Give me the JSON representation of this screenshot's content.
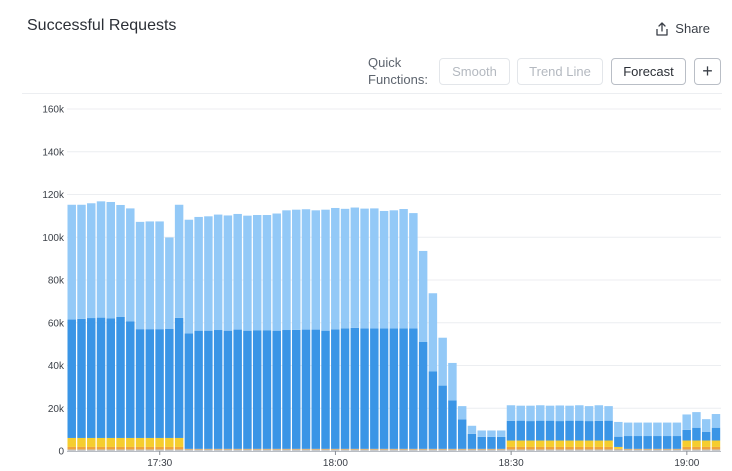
{
  "header": {
    "title": "Successful Requests",
    "share_label": "Share",
    "share_icon": "share-icon"
  },
  "quick_functions": {
    "label_line1": "Quick",
    "label_line2": "Functions:",
    "smooth_label": "Smooth",
    "trend_label": "Trend Line",
    "forecast_label": "Forecast",
    "add_label": "+"
  },
  "colors": {
    "light_blue": "#93c9f7",
    "blue": "#3a95e6",
    "yellow": "#f5cd2e",
    "orange": "#f0a33c",
    "gray": "#c7c9cc",
    "grid": "#eceef1"
  },
  "chart_data": {
    "type": "bar",
    "stacked": true,
    "ylim": [
      0,
      160000
    ],
    "yticks": [
      "0",
      "20k",
      "40k",
      "60k",
      "80k",
      "100k",
      "120k",
      "140k",
      "160k"
    ],
    "xticks": [
      "17:30",
      "18:00",
      "18:30",
      "19:00"
    ],
    "grid": true,
    "series": [
      {
        "color": "#c7c9cc",
        "values": [
          700,
          700,
          700,
          700,
          700,
          700,
          700,
          700,
          700,
          700,
          700,
          700,
          700,
          700,
          700,
          700,
          700,
          700,
          700,
          700,
          700,
          700,
          700,
          700,
          700,
          700,
          700,
          700,
          700,
          700,
          700,
          700,
          700,
          700,
          700,
          700,
          700,
          700,
          700,
          700,
          700,
          700,
          700,
          700,
          700,
          700,
          700,
          700,
          700,
          700,
          700,
          700,
          700,
          700,
          700,
          700,
          700,
          700,
          700,
          700,
          700,
          700,
          700,
          700,
          700,
          700,
          700
        ]
      },
      {
        "color": "#f0a33c",
        "values": [
          1200,
          1200,
          1200,
          1200,
          1200,
          1200,
          1200,
          1200,
          1200,
          1200,
          1200,
          1200,
          300,
          300,
          300,
          300,
          300,
          300,
          300,
          300,
          300,
          300,
          300,
          300,
          300,
          300,
          300,
          300,
          300,
          300,
          300,
          300,
          300,
          300,
          300,
          300,
          300,
          300,
          300,
          300,
          300,
          300,
          300,
          300,
          300,
          1200,
          1200,
          1200,
          1200,
          1200,
          1200,
          1200,
          1200,
          1200,
          1200,
          1200,
          300,
          300,
          300,
          300,
          300,
          300,
          300,
          1200,
          1200,
          1200,
          1200
        ]
      },
      {
        "color": "#f5cd2e",
        "values": [
          4200,
          4200,
          4200,
          4200,
          4200,
          4200,
          4200,
          4200,
          4200,
          4200,
          4200,
          4200,
          0,
          0,
          0,
          0,
          0,
          0,
          0,
          0,
          0,
          0,
          0,
          0,
          0,
          0,
          0,
          0,
          0,
          0,
          0,
          0,
          0,
          0,
          0,
          0,
          0,
          0,
          0,
          0,
          0,
          0,
          0,
          0,
          0,
          3000,
          3000,
          3000,
          3000,
          3000,
          3000,
          3000,
          3000,
          3000,
          3000,
          3000,
          900,
          0,
          0,
          0,
          0,
          0,
          0,
          3000,
          3000,
          3000,
          3000
        ]
      },
      {
        "color": "#3a95e6",
        "values": [
          55400,
          55700,
          56100,
          56300,
          55900,
          56600,
          54600,
          50900,
          50900,
          50900,
          51100,
          56200,
          54000,
          55300,
          55300,
          55600,
          55300,
          55800,
          55300,
          55500,
          55500,
          55300,
          55600,
          55700,
          55800,
          55800,
          55300,
          55900,
          56400,
          56600,
          56300,
          56300,
          56300,
          56300,
          56400,
          56300,
          50000,
          36200,
          29600,
          22700,
          13800,
          7000,
          5600,
          5600,
          5600,
          9200,
          9300,
          9100,
          9300,
          9300,
          9100,
          9300,
          9300,
          9100,
          9200,
          9300,
          4800,
          6000,
          6000,
          6000,
          6000,
          6000,
          6000,
          5000,
          6000,
          4000,
          6000
        ]
      },
      {
        "color": "#93c9f7",
        "values": [
          53700,
          53400,
          53700,
          54400,
          54500,
          52400,
          52800,
          50200,
          50400,
          50400,
          42700,
          52900,
          53200,
          53200,
          53500,
          54000,
          53900,
          54100,
          53800,
          53900,
          53900,
          54800,
          56000,
          56200,
          56300,
          55800,
          56600,
          56800,
          55900,
          56300,
          56100,
          56200,
          55000,
          55300,
          55800,
          54000,
          42600,
          36600,
          22400,
          17500,
          6200,
          3800,
          3000,
          3000,
          3000,
          7300,
          7000,
          7200,
          7200,
          7000,
          7300,
          7000,
          7200,
          7000,
          7300,
          6800,
          6900,
          6300,
          6300,
          6300,
          6300,
          6300,
          6300,
          7200,
          7300,
          6000,
          6400
        ]
      }
    ]
  }
}
